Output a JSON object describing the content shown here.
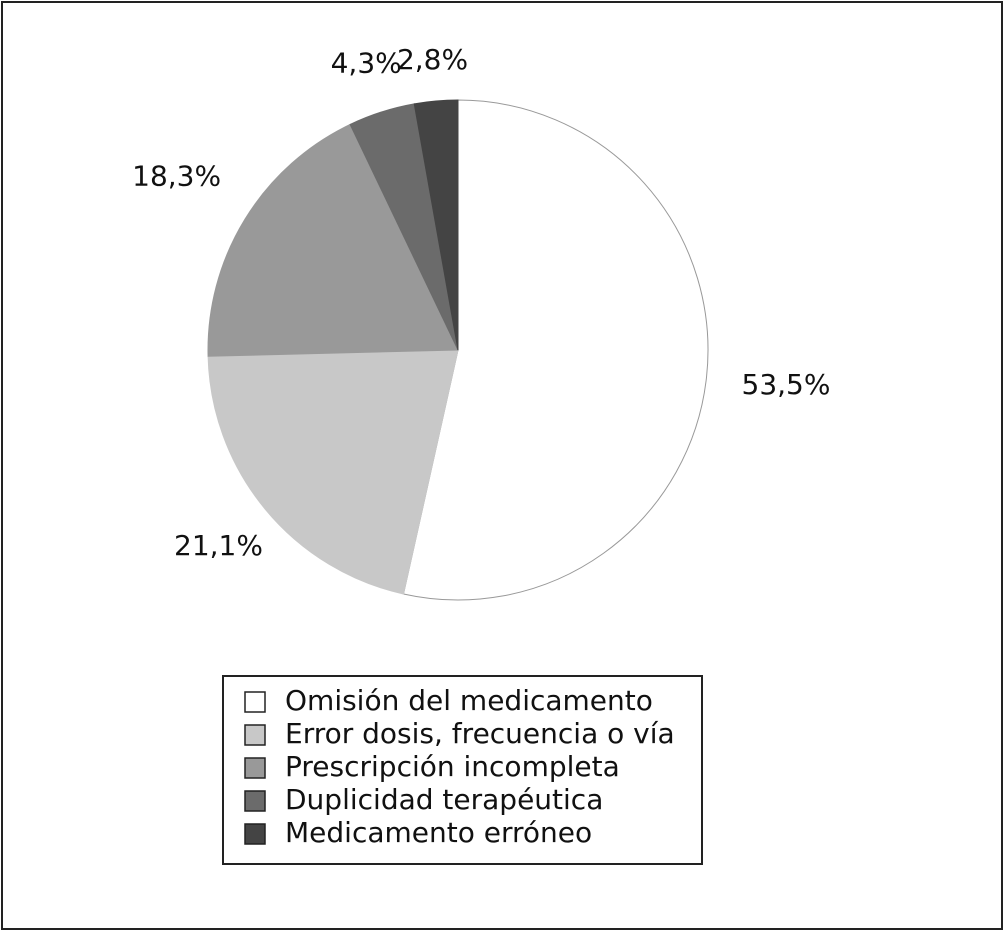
{
  "chart_data": {
    "type": "pie",
    "categories": [
      "Omisión del medicamento",
      "Error dosis, frecuencia o vía",
      "Prescripción incompleta",
      "Duplicidad terapéutica",
      "Medicamento erróneo"
    ],
    "values": [
      53.5,
      21.1,
      18.3,
      4.3,
      2.8
    ],
    "value_labels": [
      "53,5%",
      "21,1%",
      "18,3%",
      "4,3%",
      "2,8%"
    ],
    "colors": [
      "#ffffff",
      "#c8c8c8",
      "#999999",
      "#6b6b6b",
      "#444444"
    ]
  }
}
